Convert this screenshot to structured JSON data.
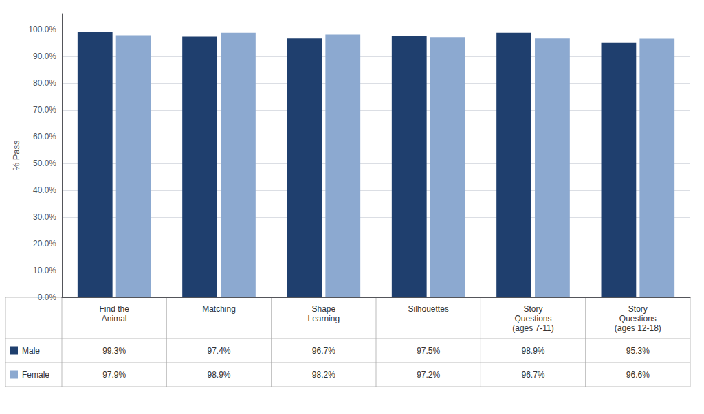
{
  "chart_data": {
    "type": "bar",
    "categories": [
      "Find the\nAnimal",
      "Matching",
      "Shape\nLearning",
      "Silhouettes",
      "Story\nQuestions\n(ages 7-11)",
      "Story\nQuestions\n(ages 12-18)"
    ],
    "series": [
      {
        "name": "Male",
        "color": "#1F3F6E",
        "values": [
          99.3,
          97.4,
          96.7,
          97.5,
          98.9,
          95.3
        ],
        "value_labels": [
          "99.3%",
          "97.4%",
          "96.7%",
          "97.5%",
          "98.9%",
          "95.3%"
        ]
      },
      {
        "name": "Female",
        "color": "#8CA9D0",
        "values": [
          97.9,
          98.9,
          98.2,
          97.2,
          96.7,
          96.6
        ],
        "value_labels": [
          "97.9%",
          "98.9%",
          "98.2%",
          "97.2%",
          "96.7%",
          "96.6%"
        ]
      }
    ],
    "ylabel": "% Pass",
    "ylim": [
      0,
      106
    ],
    "yticks": [
      {
        "value": 0,
        "label": "0.0%"
      },
      {
        "value": 10,
        "label": "10.0%"
      },
      {
        "value": 20,
        "label": "20.0%"
      },
      {
        "value": 30,
        "label": "30.0%"
      },
      {
        "value": 40,
        "label": "40.0%"
      },
      {
        "value": 50,
        "label": "50.0%"
      },
      {
        "value": 60,
        "label": "60.0%"
      },
      {
        "value": 70,
        "label": "70.0%"
      },
      {
        "value": 80,
        "label": "80.0%"
      },
      {
        "value": 90,
        "label": "90.0%"
      },
      {
        "value": 100,
        "label": "100.0%"
      }
    ],
    "grid": true
  }
}
